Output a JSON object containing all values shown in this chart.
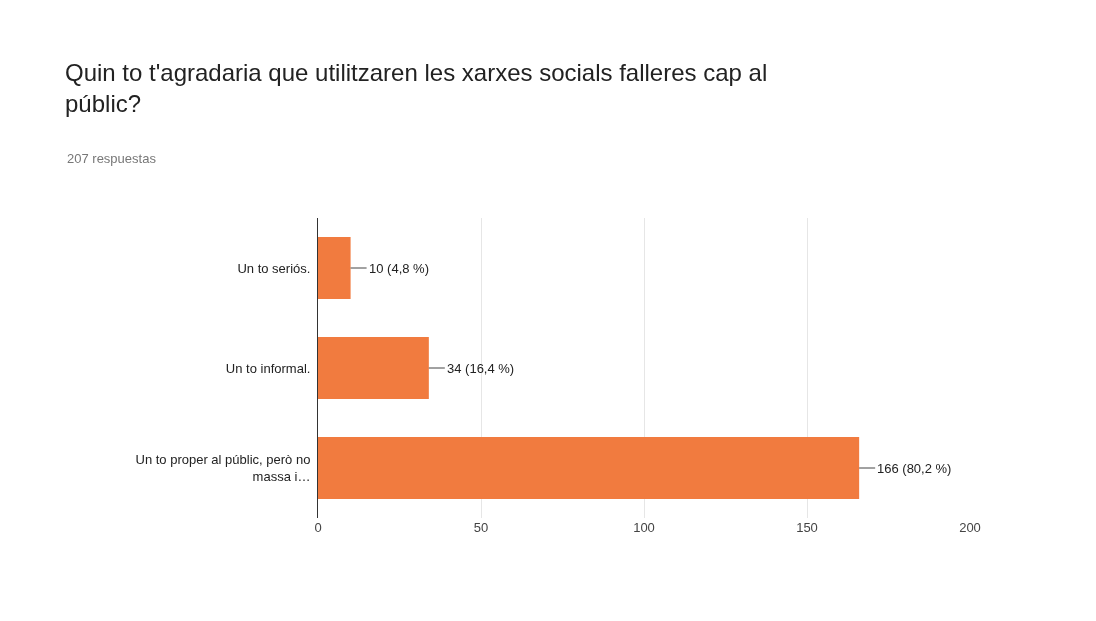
{
  "chart_data": {
    "type": "bar",
    "orientation": "horizontal",
    "title": "Quin to t'agradaria que utilitzaren les xarxes socials falleres cap al públic?",
    "subtitle": "207 respuestas",
    "categories": [
      "Un to seriós.",
      "Un to informal.",
      "Un to proper al públic, però no massa i…"
    ],
    "values": [
      10,
      34,
      166
    ],
    "value_labels": [
      "10 (4,8 %)",
      "34 (16,4 %)",
      "166 (80,2 %)"
    ],
    "color": "#f17b3f",
    "xlim": [
      0,
      200
    ],
    "xticks": [
      0,
      50,
      100,
      150,
      200
    ],
    "grid": "x"
  }
}
